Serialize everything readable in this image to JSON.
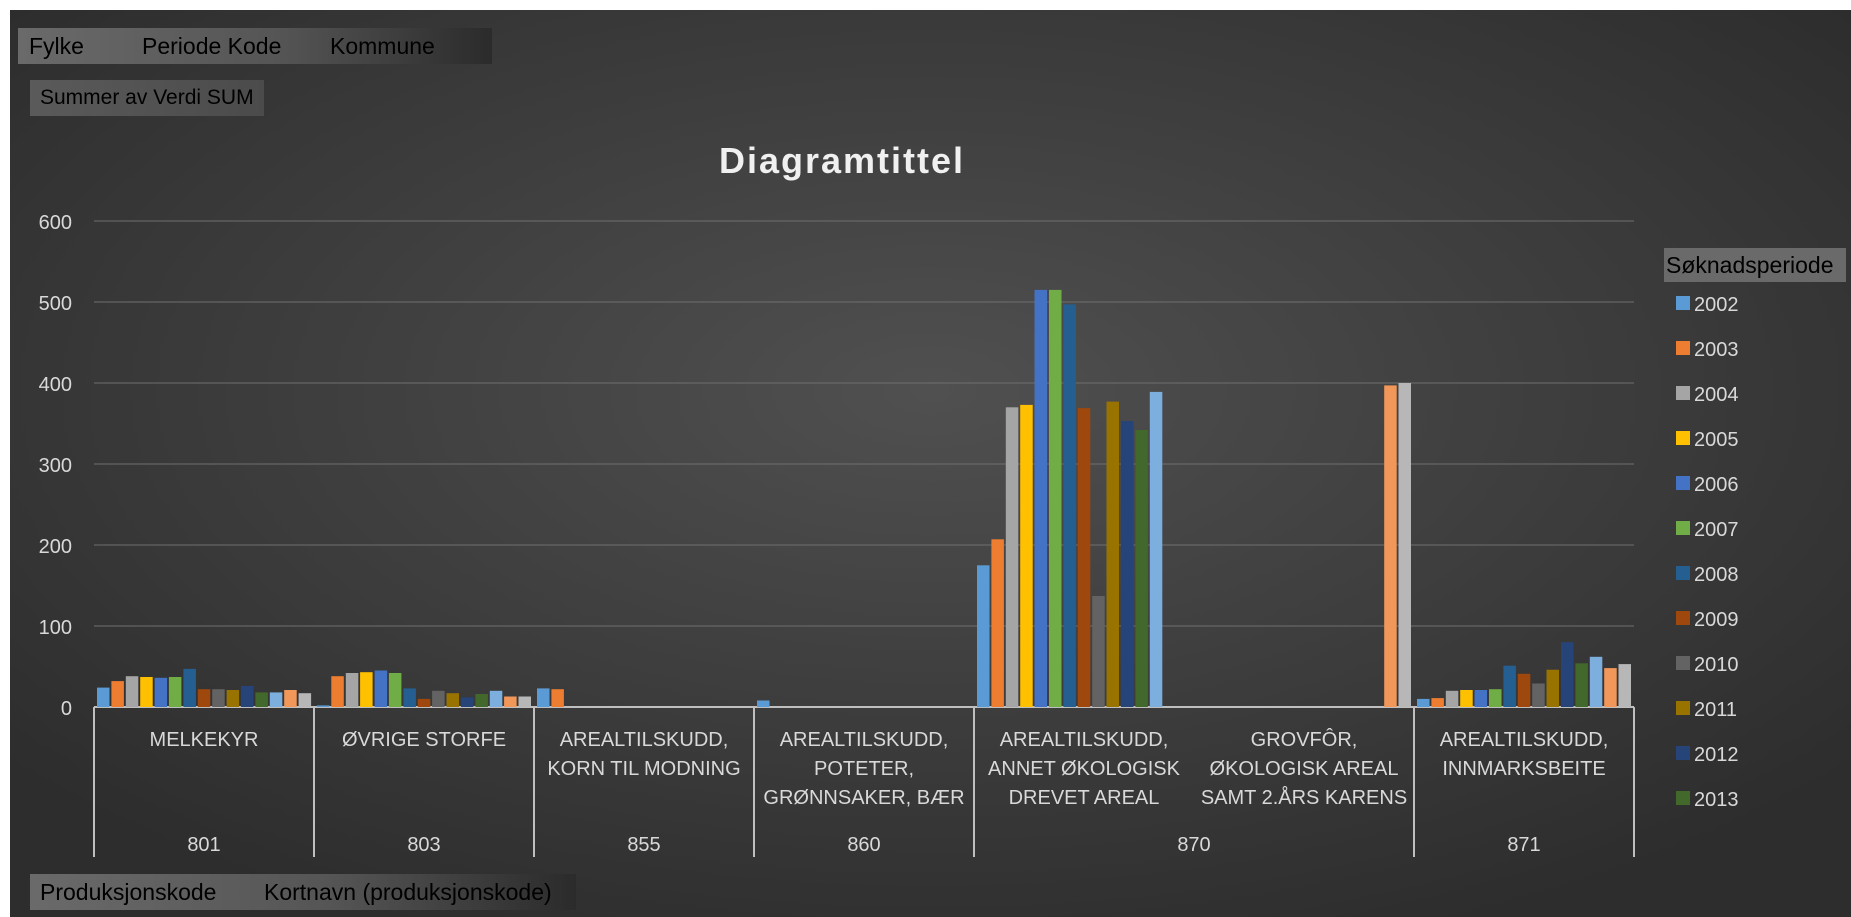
{
  "filters": {
    "fylke": "Fylke",
    "periode_kode": "Periode Kode",
    "kommune": "Kommune",
    "values_field": "Summer av Verdi SUM",
    "row_field_1": "Produksjonskode",
    "row_field_2": "Kortnavn (produksjonskode)"
  },
  "legend_title": "Søknadsperiode",
  "colors": {
    "background_outer": "#2d2d2d",
    "background_inner": "#505050",
    "text": "#d9d9d9",
    "series": [
      "#5b9bd5",
      "#ed7d31",
      "#a5a5a5",
      "#ffc000",
      "#4472c4",
      "#70ad47",
      "#255e91",
      "#9e480e",
      "#636363",
      "#997300",
      "#264478",
      "#43682b",
      "#7cafdd",
      "#f1975a",
      "#b7b7b7"
    ]
  },
  "chart_data": {
    "type": "bar",
    "title": "Diagramtittel",
    "ylim": [
      0,
      600
    ],
    "yticks": [
      0,
      100,
      200,
      300,
      400,
      500,
      600
    ],
    "grid": true,
    "legend_position": "right",
    "legend_visible_entries": [
      "2002",
      "2003",
      "2004",
      "2005",
      "2006",
      "2007",
      "2008",
      "2009",
      "2010",
      "2011",
      "2012",
      "2013"
    ],
    "category_groups": [
      {
        "code": "801",
        "labels": [
          "MELKEKYR"
        ]
      },
      {
        "code": "803",
        "labels": [
          "ØVRIGE STORFE"
        ]
      },
      {
        "code": "855",
        "labels": [
          "AREALTILSKUDD, KORN TIL MODNING"
        ]
      },
      {
        "code": "860",
        "labels": [
          "AREALTILSKUDD, POTETER, GRØNNSAKER, BÆR"
        ]
      },
      {
        "code": "870",
        "labels": [
          "AREALTILSKUDD, ANNET ØKOLOGISK DREVET AREAL",
          "GROVFÔR, ØKOLOGISK AREAL SAMT 2.ÅRS KARENS"
        ]
      },
      {
        "code": "871",
        "labels": [
          "AREALTILSKUDD, INNMARKSBEITE"
        ]
      }
    ],
    "category_label_lines": [
      [
        "MELKEKYR"
      ],
      [
        "ØVRIGE STORFE"
      ],
      [
        "AREALTILSKUDD,",
        "KORN TIL MODNING"
      ],
      [
        "AREALTILSKUDD,",
        "POTETER,",
        "GRØNNSAKER, BÆR"
      ],
      [
        "AREALTILSKUDD,",
        "ANNET ØKOLOGISK",
        "DREVET AREAL"
      ],
      [
        "GROVFÔR,",
        "ØKOLOGISK AREAL",
        "SAMT 2.ÅRS KARENS"
      ],
      [
        "AREALTILSKUDD,",
        "INNMARKSBEITE"
      ]
    ],
    "categories": [
      "MELKEKYR",
      "ØVRIGE STORFE",
      "AREALTILSKUDD, KORN TIL MODNING",
      "AREALTILSKUDD, POTETER, GRØNNSAKER, BÆR",
      "AREALTILSKUDD, ANNET ØKOLOGISK DREVET AREAL",
      "GROVFÔR, ØKOLOGISK AREAL SAMT 2.ÅRS KARENS",
      "AREALTILSKUDD, INNMARKSBEITE"
    ],
    "series": [
      {
        "name": "2002",
        "values": [
          24,
          2,
          23,
          8,
          175,
          0,
          10
        ]
      },
      {
        "name": "2003",
        "values": [
          32,
          38,
          22,
          0,
          207,
          0,
          11
        ]
      },
      {
        "name": "2004",
        "values": [
          38,
          42,
          0,
          0,
          370,
          0,
          20
        ]
      },
      {
        "name": "2005",
        "values": [
          37,
          43,
          0,
          0,
          373,
          0,
          21
        ]
      },
      {
        "name": "2006",
        "values": [
          36,
          45,
          0,
          0,
          515,
          0,
          21
        ]
      },
      {
        "name": "2007",
        "values": [
          37,
          42,
          0,
          0,
          515,
          0,
          22
        ]
      },
      {
        "name": "2008",
        "values": [
          47,
          23,
          0,
          0,
          497,
          0,
          51
        ]
      },
      {
        "name": "2009",
        "values": [
          22,
          10,
          0,
          0,
          369,
          0,
          41
        ]
      },
      {
        "name": "2010",
        "values": [
          22,
          20,
          0,
          0,
          137,
          0,
          29
        ]
      },
      {
        "name": "2011",
        "values": [
          21,
          17,
          0,
          0,
          377,
          0,
          46
        ]
      },
      {
        "name": "2012",
        "values": [
          26,
          12,
          0,
          0,
          353,
          0,
          80
        ]
      },
      {
        "name": "2013",
        "values": [
          18,
          16,
          0,
          0,
          342,
          0,
          54
        ]
      },
      {
        "values": [
          18,
          20,
          0,
          0,
          389,
          0,
          62
        ]
      },
      {
        "values": [
          21,
          13,
          0,
          0,
          0,
          397,
          48
        ]
      },
      {
        "values": [
          17,
          13,
          0,
          0,
          0,
          400,
          53
        ]
      }
    ]
  }
}
